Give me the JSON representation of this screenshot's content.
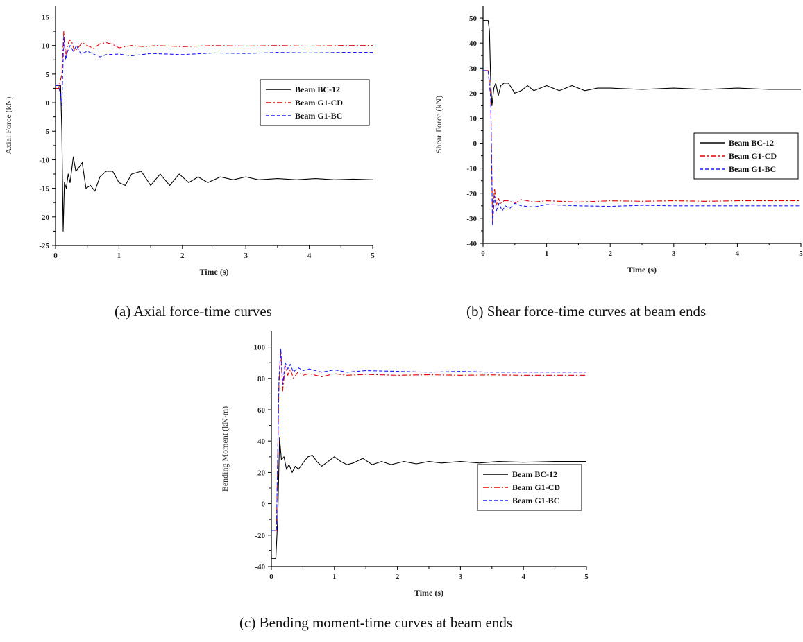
{
  "chart_data": [
    {
      "id": "axial",
      "type": "line",
      "caption": "(a) Axial force-time curves",
      "xlabel": "Time (s)",
      "ylabel": "Axial Force (kN)",
      "xlim": [
        0,
        5
      ],
      "ylim": [
        -25,
        17
      ],
      "xticks": [
        0,
        1,
        2,
        3,
        4,
        5
      ],
      "yticks": [
        -25,
        -20,
        -15,
        -10,
        -5,
        0,
        5,
        10,
        15
      ],
      "grid": false,
      "legend_position": "right-middle",
      "series": [
        {
          "name": "Beam BC-12",
          "color": "#000000",
          "dash": "solid",
          "x": [
            0,
            0.08,
            0.1,
            0.12,
            0.14,
            0.17,
            0.2,
            0.23,
            0.28,
            0.32,
            0.36,
            0.42,
            0.48,
            0.55,
            0.62,
            0.7,
            0.8,
            0.9,
            1.0,
            1.1,
            1.2,
            1.35,
            1.5,
            1.65,
            1.8,
            1.95,
            2.1,
            2.25,
            2.4,
            2.6,
            2.8,
            3.0,
            3.2,
            3.5,
            3.8,
            4.1,
            4.4,
            4.7,
            5.0
          ],
          "y": [
            3,
            3,
            -5,
            -22.5,
            -14,
            -15,
            -12.5,
            -14,
            -9.5,
            -12,
            -11.5,
            -10.5,
            -15,
            -14.5,
            -15.5,
            -13,
            -12,
            -12,
            -14,
            -14.5,
            -12.5,
            -12,
            -14.5,
            -12.5,
            -14.5,
            -12.5,
            -14,
            -13,
            -14,
            -13,
            -13.5,
            -13,
            -13.5,
            -13.3,
            -13.5,
            -13.3,
            -13.5,
            -13.4,
            -13.5
          ]
        },
        {
          "name": "Beam G1-CD",
          "color": "#e00000",
          "dash": "dashdot",
          "x": [
            0,
            0.05,
            0.1,
            0.13,
            0.16,
            0.19,
            0.22,
            0.26,
            0.3,
            0.35,
            0.42,
            0.5,
            0.6,
            0.7,
            0.8,
            0.9,
            1.0,
            1.2,
            1.4,
            1.6,
            2.0,
            2.5,
            3.0,
            3.5,
            4.0,
            4.5,
            5.0
          ],
          "y": [
            2.5,
            2.5,
            5,
            12.5,
            8,
            10,
            11,
            10.5,
            9,
            9.5,
            10.5,
            10,
            9.5,
            10.3,
            10.5,
            10.2,
            9.6,
            10,
            9.8,
            10,
            9.8,
            10,
            9.9,
            10,
            9.9,
            10,
            10
          ]
        },
        {
          "name": "Beam G1-BC",
          "color": "#1a1aff",
          "dash": "dashed",
          "x": [
            0,
            0.05,
            0.1,
            0.13,
            0.16,
            0.19,
            0.23,
            0.28,
            0.33,
            0.4,
            0.5,
            0.6,
            0.7,
            0.8,
            1.0,
            1.2,
            1.5,
            2.0,
            2.5,
            3.0,
            3.5,
            4.0,
            4.5,
            5.0
          ],
          "y": [
            3,
            3,
            -0.5,
            11.5,
            7.5,
            9,
            10,
            9,
            10,
            8.5,
            9,
            8.5,
            8,
            8.4,
            8.5,
            8.2,
            8.6,
            8.4,
            8.7,
            8.6,
            8.8,
            8.7,
            8.8,
            8.8
          ]
        }
      ]
    },
    {
      "id": "shear",
      "type": "line",
      "caption": "(b) Shear force-time curves at beam ends",
      "xlabel": "Time (s)",
      "ylabel": "Shear Force (kN)",
      "xlim": [
        0,
        5
      ],
      "ylim": [
        -40,
        55
      ],
      "xticks": [
        0,
        1,
        2,
        3,
        4,
        5
      ],
      "yticks": [
        -40,
        -30,
        -20,
        -10,
        0,
        10,
        20,
        30,
        40,
        50
      ],
      "grid": false,
      "legend_position": "right-middle",
      "series": [
        {
          "name": "Beam BC-12",
          "color": "#000000",
          "dash": "solid",
          "x": [
            0,
            0.08,
            0.1,
            0.12,
            0.14,
            0.17,
            0.2,
            0.24,
            0.28,
            0.33,
            0.4,
            0.5,
            0.6,
            0.7,
            0.8,
            0.9,
            1.0,
            1.2,
            1.4,
            1.6,
            1.8,
            2.0,
            2.5,
            3.0,
            3.5,
            4.0,
            4.5,
            5.0
          ],
          "y": [
            49,
            49,
            45,
            25,
            15,
            22,
            24,
            19,
            23,
            24,
            24,
            20,
            21,
            23,
            21,
            22,
            23,
            21,
            23,
            21,
            22,
            22,
            21.5,
            22,
            21.5,
            22,
            21.5,
            21.5
          ]
        },
        {
          "name": "Beam G1-CD",
          "color": "#e00000",
          "dash": "dashdot",
          "x": [
            0,
            0.08,
            0.12,
            0.15,
            0.18,
            0.21,
            0.24,
            0.28,
            0.33,
            0.4,
            0.5,
            0.6,
            0.8,
            1.0,
            1.5,
            2.0,
            2.5,
            3.0,
            3.5,
            4.0,
            4.5,
            5.0
          ],
          "y": [
            29,
            29,
            20,
            -31,
            -18,
            -25,
            -22,
            -24,
            -23,
            -23,
            -24,
            -22.5,
            -23.5,
            -23,
            -23.5,
            -23,
            -23.2,
            -23,
            -23.2,
            -23,
            -23,
            -23
          ]
        },
        {
          "name": "Beam G1-BC",
          "color": "#1a1aff",
          "dash": "dashed",
          "x": [
            0,
            0.08,
            0.12,
            0.15,
            0.18,
            0.21,
            0.25,
            0.3,
            0.35,
            0.42,
            0.5,
            0.6,
            0.8,
            1.0,
            1.5,
            2.0,
            2.5,
            3.0,
            3.5,
            4.0,
            4.5,
            5.0
          ],
          "y": [
            29,
            29,
            18,
            -33,
            -21,
            -27,
            -24,
            -27,
            -25,
            -26,
            -24,
            -25,
            -25.5,
            -24.5,
            -25,
            -25.2,
            -24.8,
            -25,
            -25,
            -25,
            -25,
            -25
          ]
        }
      ]
    },
    {
      "id": "moment",
      "type": "line",
      "caption": "(c) Bending moment-time curves at beam ends",
      "xlabel": "Time (s)",
      "ylabel": "Bending Moment (kN·m)",
      "xlim": [
        0,
        5
      ],
      "ylim": [
        -40,
        110
      ],
      "xticks": [
        0,
        1,
        2,
        3,
        4,
        5
      ],
      "yticks": [
        -40,
        -20,
        0,
        20,
        40,
        60,
        80,
        100
      ],
      "grid": false,
      "legend_position": "right-lower",
      "series": [
        {
          "name": "Beam BC-12",
          "color": "#000000",
          "dash": "solid",
          "x": [
            0,
            0.07,
            0.1,
            0.13,
            0.16,
            0.2,
            0.24,
            0.28,
            0.33,
            0.38,
            0.43,
            0.5,
            0.58,
            0.65,
            0.72,
            0.8,
            0.9,
            1.0,
            1.1,
            1.2,
            1.3,
            1.45,
            1.6,
            1.75,
            1.9,
            2.1,
            2.3,
            2.5,
            2.7,
            3.0,
            3.3,
            3.6,
            4.0,
            4.5,
            5.0
          ],
          "y": [
            -35,
            -35,
            -10,
            42,
            28,
            30,
            22,
            25,
            20,
            24,
            22,
            26,
            30,
            31,
            27,
            24,
            27,
            30,
            27,
            25,
            26,
            29,
            25,
            27,
            25,
            27,
            25.5,
            27,
            26,
            27,
            26,
            27,
            26.5,
            27,
            27
          ]
        },
        {
          "name": "Beam G1-CD",
          "color": "#e00000",
          "dash": "dashdot",
          "x": [
            0,
            0.08,
            0.12,
            0.15,
            0.18,
            0.22,
            0.26,
            0.3,
            0.35,
            0.42,
            0.5,
            0.6,
            0.8,
            1.0,
            1.2,
            1.5,
            2.0,
            2.5,
            3.0,
            3.5,
            4.0,
            4.5,
            5.0
          ],
          "y": [
            -17,
            -17,
            75,
            97,
            72,
            88,
            82,
            86,
            80,
            84,
            82,
            83,
            81,
            83,
            82,
            82.5,
            82,
            82.3,
            82,
            82.2,
            82,
            82,
            82
          ]
        },
        {
          "name": "Beam G1-BC",
          "color": "#1a1aff",
          "dash": "dashed",
          "x": [
            0,
            0.08,
            0.12,
            0.15,
            0.18,
            0.22,
            0.26,
            0.3,
            0.35,
            0.42,
            0.5,
            0.6,
            0.8,
            1.0,
            1.2,
            1.5,
            2.0,
            2.5,
            3.0,
            3.5,
            4.0,
            4.5,
            5.0
          ],
          "y": [
            -17,
            -17,
            80,
            99,
            76,
            90,
            86,
            89,
            84,
            87,
            85,
            86,
            84,
            85.5,
            84,
            85,
            84.5,
            84,
            84.5,
            84,
            84,
            84,
            84
          ]
        }
      ]
    }
  ]
}
